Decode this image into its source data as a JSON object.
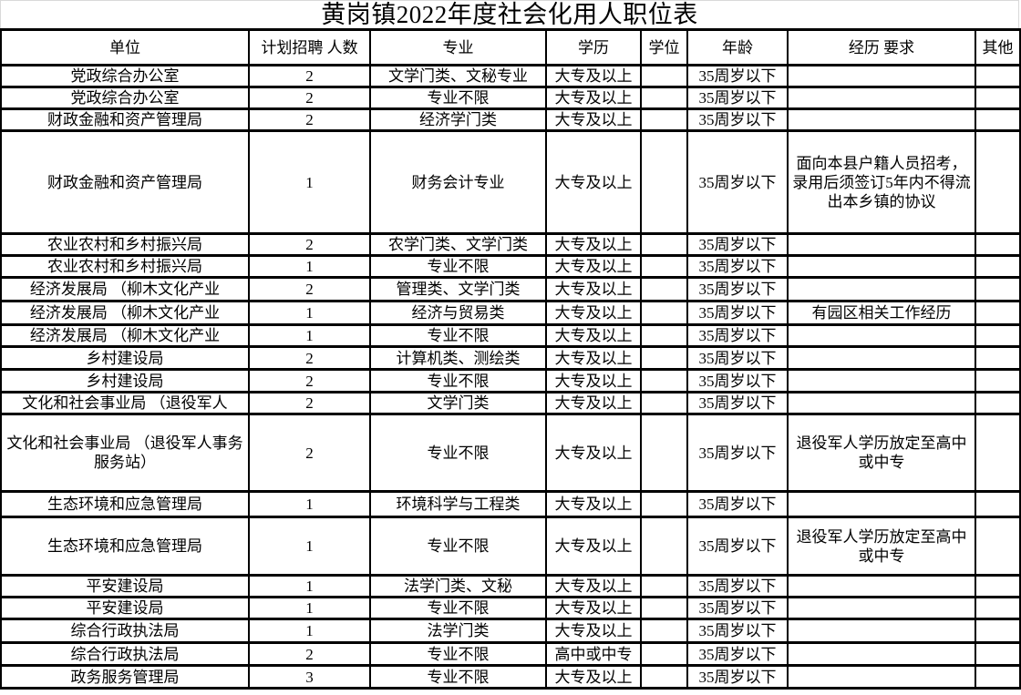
{
  "title": "黄岗镇2022年度社会化用人职位表",
  "table": {
    "headers": [
      "单位",
      "计划招聘 人数",
      "专业",
      "学历",
      "学位",
      "年龄",
      "经历 要求",
      "其他"
    ],
    "rows": [
      {
        "unit": "党政综合办公室",
        "count": "2",
        "major": "文学门类、文秘专业",
        "education": "大专及以上",
        "degree": "",
        "age": "35周岁以下",
        "experience": "",
        "other": ""
      },
      {
        "unit": "党政综合办公室",
        "count": "2",
        "major": "专业不限",
        "education": "大专及以上",
        "degree": "",
        "age": "35周岁以下",
        "experience": "",
        "other": ""
      },
      {
        "unit": "财政金融和资产管理局",
        "count": "2",
        "major": "经济学门类",
        "education": "大专及以上",
        "degree": "",
        "age": "35周岁以下",
        "experience": "",
        "other": ""
      },
      {
        "unit": "财政金融和资产管理局",
        "count": "1",
        "major": "财务会计专业",
        "education": "大专及以上",
        "degree": "",
        "age": "35周岁以下",
        "experience": "面向本县户籍人员招考，录用后须签订5年内不得流出本乡镇的协议",
        "other": ""
      },
      {
        "unit": "农业农村和乡村振兴局",
        "count": "2",
        "major": "农学门类、文学门类",
        "education": "大专及以上",
        "degree": "",
        "age": "35周岁以下",
        "experience": "",
        "other": ""
      },
      {
        "unit": "农业农村和乡村振兴局",
        "count": "1",
        "major": "专业不限",
        "education": "大专及以上",
        "degree": "",
        "age": "35周岁以下",
        "experience": "",
        "other": ""
      },
      {
        "unit": "经济发展局 （柳木文化产业",
        "count": "2",
        "major": "管理类、文学门类",
        "education": "大专及以上",
        "degree": "",
        "age": "35周岁以下",
        "experience": "",
        "other": ""
      },
      {
        "unit": "经济发展局 （柳木文化产业",
        "count": "1",
        "major": "经济与贸易类",
        "education": "大专及以上",
        "degree": "",
        "age": "35周岁以下",
        "experience": "有园区相关工作经历",
        "other": ""
      },
      {
        "unit": "经济发展局 （柳木文化产业",
        "count": "1",
        "major": "专业不限",
        "education": "大专及以上",
        "degree": "",
        "age": "35周岁以下",
        "experience": "",
        "other": ""
      },
      {
        "unit": "乡村建设局",
        "count": "2",
        "major": "计算机类、测绘类",
        "education": "大专及以上",
        "degree": "",
        "age": "35周岁以下",
        "experience": "",
        "other": ""
      },
      {
        "unit": "乡村建设局",
        "count": "2",
        "major": "专业不限",
        "education": "大专及以上",
        "degree": "",
        "age": "35周岁以下",
        "experience": "",
        "other": ""
      },
      {
        "unit": "文化和社会事业局 （退役军人",
        "count": "2",
        "major": "文学门类",
        "education": "大专及以上",
        "degree": "",
        "age": "35周岁以下",
        "experience": "",
        "other": ""
      },
      {
        "unit": "文化和社会事业局 （退役军人事务服务站）",
        "count": "2",
        "major": "专业不限",
        "education": "大专及以上",
        "degree": "",
        "age": "35周岁以下",
        "experience": "退役军人学历放定至高中或中专",
        "other": ""
      },
      {
        "unit": "生态环境和应急管理局",
        "count": "1",
        "major": "环境科学与工程类",
        "education": "大专及以上",
        "degree": "",
        "age": "35周岁以下",
        "experience": "",
        "other": ""
      },
      {
        "unit": "生态环境和应急管理局",
        "count": "1",
        "major": "专业不限",
        "education": "大专及以上",
        "degree": "",
        "age": "35周岁以下",
        "experience": "退役军人学历放定至高中或中专",
        "other": ""
      },
      {
        "unit": "平安建设局",
        "count": "1",
        "major": "法学门类、文秘",
        "education": "大专及以上",
        "degree": "",
        "age": "35周岁以下",
        "experience": "",
        "other": ""
      },
      {
        "unit": "平安建设局",
        "count": "1",
        "major": "专业不限",
        "education": "大专及以上",
        "degree": "",
        "age": "35周岁以下",
        "experience": "",
        "other": ""
      },
      {
        "unit": "综合行政执法局",
        "count": "1",
        "major": "法学门类",
        "education": "大专及以上",
        "degree": "",
        "age": "35周岁以下",
        "experience": "",
        "other": ""
      },
      {
        "unit": "综合行政执法局",
        "count": "2",
        "major": "专业不限",
        "education": "高中或中专",
        "degree": "",
        "age": "35周岁以下",
        "experience": "",
        "other": ""
      },
      {
        "unit": "政务服务管理局",
        "count": "3",
        "major": "专业不限",
        "education": "大专及以上",
        "degree": "",
        "age": "35周岁以下",
        "experience": "",
        "other": ""
      }
    ]
  }
}
